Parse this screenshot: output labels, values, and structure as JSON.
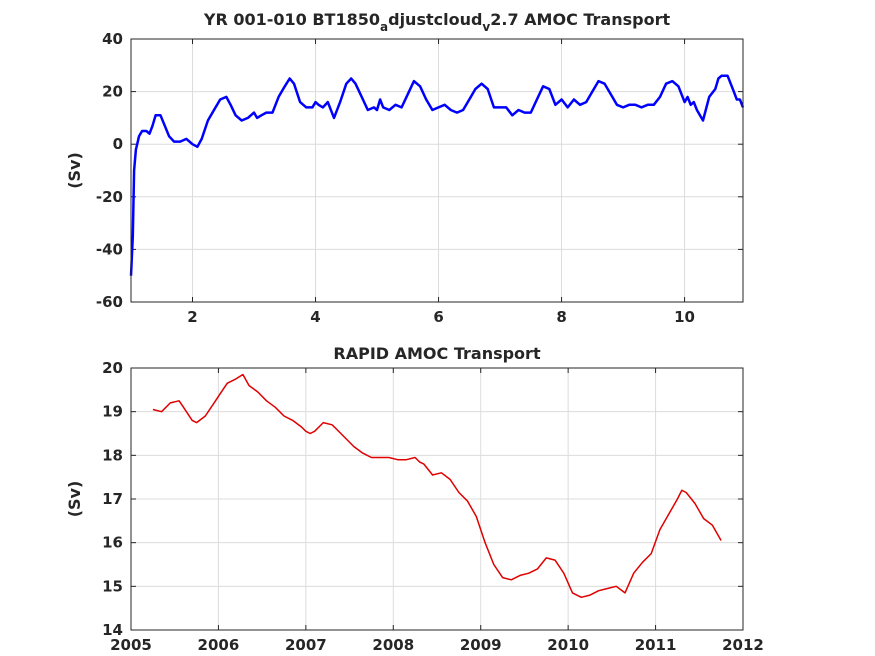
{
  "chart_data": [
    {
      "type": "line",
      "title": "YR 001-010 BT1850",
      "title_sub1": "a",
      "title_mid": "djustcloud",
      "title_sub2": "v",
      "title_end": "2.7 AMOC Transport",
      "xlabel": "",
      "ylabel": "(Sv)",
      "xlim": [
        1.0,
        10.95
      ],
      "ylim": [
        -60,
        40
      ],
      "xticks": [
        2,
        4,
        6,
        8,
        10
      ],
      "yticks": [
        -60,
        -40,
        -20,
        0,
        20,
        40
      ],
      "grid": true,
      "color": "#0000ff",
      "series": [
        {
          "x": [
            1.0,
            1.03,
            1.05,
            1.08,
            1.1,
            1.13,
            1.18,
            1.25,
            1.3,
            1.35,
            1.4,
            1.48,
            1.55,
            1.62,
            1.7,
            1.8,
            1.9,
            2.0,
            2.08,
            2.15,
            2.25,
            2.35,
            2.45,
            2.55,
            2.62,
            2.7,
            2.8,
            2.9,
            3.0,
            3.05,
            3.12,
            3.2,
            3.3,
            3.4,
            3.5,
            3.58,
            3.65,
            3.75,
            3.85,
            3.95,
            4.0,
            4.05,
            4.12,
            4.2,
            4.3,
            4.4,
            4.5,
            4.58,
            4.65,
            4.75,
            4.85,
            4.95,
            5.0,
            5.05,
            5.1,
            5.2,
            5.3,
            5.4,
            5.5,
            5.6,
            5.7,
            5.8,
            5.9,
            6.0,
            6.1,
            6.2,
            6.3,
            6.4,
            6.5,
            6.6,
            6.7,
            6.8,
            6.9,
            7.0,
            7.1,
            7.2,
            7.3,
            7.4,
            7.5,
            7.6,
            7.7,
            7.8,
            7.9,
            8.0,
            8.1,
            8.2,
            8.3,
            8.4,
            8.5,
            8.6,
            8.7,
            8.8,
            8.9,
            9.0,
            9.1,
            9.2,
            9.3,
            9.4,
            9.5,
            9.6,
            9.7,
            9.8,
            9.9,
            10.0,
            10.05,
            10.1,
            10.15,
            10.2,
            10.3,
            10.4,
            10.5,
            10.55,
            10.6,
            10.7,
            10.8,
            10.85,
            10.9,
            10.95
          ],
          "y": [
            -50,
            -35,
            -10,
            -2,
            0,
            3,
            5,
            5,
            4,
            7,
            11,
            11,
            7,
            3,
            1,
            1,
            2,
            0,
            -1,
            2,
            9,
            13,
            17,
            18,
            15,
            11,
            9,
            10,
            12,
            10,
            11,
            12,
            12,
            18,
            22,
            25,
            23,
            16,
            14,
            14,
            16,
            15,
            14,
            16,
            10,
            16,
            23,
            25,
            23,
            18,
            13,
            14,
            13,
            17,
            14,
            13,
            15,
            14,
            19,
            24,
            22,
            17,
            13,
            14,
            15,
            13,
            12,
            13,
            17,
            21,
            23,
            21,
            14,
            14,
            14,
            11,
            13,
            12,
            12,
            17,
            22,
            21,
            15,
            17,
            14,
            17,
            15,
            16,
            20,
            24,
            23,
            19,
            15,
            14,
            15,
            15,
            14,
            15,
            15,
            18,
            23,
            24,
            22,
            16,
            18,
            15,
            16,
            13,
            9,
            18,
            21,
            25,
            26,
            26,
            20,
            17,
            17,
            14
          ]
        }
      ]
    },
    {
      "type": "line",
      "title": "RAPID AMOC Transport",
      "xlabel": "",
      "ylabel": "(Sv)",
      "xlim": [
        2005,
        2012
      ],
      "ylim": [
        14,
        20
      ],
      "xticks": [
        2005,
        2006,
        2007,
        2008,
        2009,
        2010,
        2011,
        2012
      ],
      "yticks": [
        14,
        15,
        16,
        17,
        18,
        19,
        20
      ],
      "grid": true,
      "color": "#e00000",
      "series": [
        {
          "x": [
            2005.25,
            2005.35,
            2005.45,
            2005.55,
            2005.6,
            2005.7,
            2005.75,
            2005.85,
            2005.95,
            2006.05,
            2006.1,
            2006.2,
            2006.28,
            2006.35,
            2006.45,
            2006.55,
            2006.65,
            2006.75,
            2006.85,
            2006.95,
            2007.0,
            2007.05,
            2007.1,
            2007.2,
            2007.3,
            2007.35,
            2007.45,
            2007.55,
            2007.65,
            2007.75,
            2007.85,
            2007.95,
            2008.05,
            2008.15,
            2008.25,
            2008.3,
            2008.35,
            2008.45,
            2008.55,
            2008.65,
            2008.75,
            2008.85,
            2008.95,
            2009.05,
            2009.15,
            2009.25,
            2009.35,
            2009.45,
            2009.55,
            2009.65,
            2009.75,
            2009.85,
            2009.95,
            2010.05,
            2010.15,
            2010.25,
            2010.35,
            2010.45,
            2010.55,
            2010.65,
            2010.75,
            2010.85,
            2010.95,
            2011.05,
            2011.15,
            2011.25,
            2011.3,
            2011.35,
            2011.45,
            2011.55,
            2011.65,
            2011.75
          ],
          "y": [
            19.05,
            19.0,
            19.2,
            19.25,
            19.1,
            18.8,
            18.75,
            18.9,
            19.2,
            19.5,
            19.65,
            19.75,
            19.85,
            19.6,
            19.45,
            19.25,
            19.1,
            18.9,
            18.8,
            18.65,
            18.55,
            18.5,
            18.55,
            18.75,
            18.7,
            18.6,
            18.4,
            18.2,
            18.05,
            17.95,
            17.95,
            17.95,
            17.9,
            17.9,
            17.95,
            17.85,
            17.8,
            17.55,
            17.6,
            17.45,
            17.15,
            16.95,
            16.6,
            16.0,
            15.5,
            15.2,
            15.15,
            15.25,
            15.3,
            15.4,
            15.65,
            15.6,
            15.3,
            14.85,
            14.75,
            14.8,
            14.9,
            14.95,
            15.0,
            14.85,
            15.3,
            15.55,
            15.75,
            16.3,
            16.65,
            17.0,
            17.2,
            17.15,
            16.9,
            16.55,
            16.4,
            16.05
          ]
        }
      ]
    }
  ]
}
